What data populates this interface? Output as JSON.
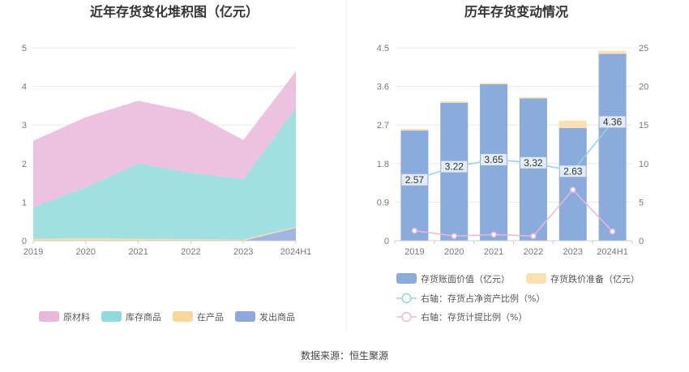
{
  "source": "数据来源：恒生聚源",
  "chart_data": [
    {
      "type": "area",
      "stacked": true,
      "title": "近年存货变化堆积图（亿元）",
      "categories": [
        "2019",
        "2020",
        "2021",
        "2022",
        "2023",
        "2024H1"
      ],
      "ylim": [
        0,
        5
      ],
      "yticks": [
        "0",
        "1",
        "2",
        "3",
        "4",
        "5"
      ],
      "grid": true,
      "legend_position": "bottom",
      "series": [
        {
          "name": "原材料",
          "color": "#e9b7d8",
          "values": [
            1.72,
            1.82,
            1.63,
            1.58,
            1.01,
            0.95
          ]
        },
        {
          "name": "库存商品",
          "color": "#8fdada",
          "values": [
            0.82,
            1.32,
            1.95,
            1.72,
            1.57,
            3.08
          ]
        },
        {
          "name": "在产品",
          "color": "#f8d79b",
          "values": [
            0.05,
            0.06,
            0.05,
            0.04,
            0.03,
            0.03
          ]
        },
        {
          "name": "发出商品",
          "color": "#8fa8dc",
          "values": [
            0.0,
            0.0,
            0.0,
            0.0,
            0.0,
            0.33
          ]
        }
      ]
    },
    {
      "type": "bar",
      "stacked": true,
      "title": "历年存货变动情况",
      "categories": [
        "2019",
        "2020",
        "2021",
        "2022",
        "2023",
        "2024H1"
      ],
      "ylim": [
        0,
        4.5
      ],
      "yticks": [
        "0",
        "0.9",
        "1.8",
        "2.7",
        "3.6",
        "4.5"
      ],
      "y2lim": [
        0,
        25
      ],
      "y2ticks": [
        "0",
        "5",
        "10",
        "15",
        "20",
        "25"
      ],
      "grid": true,
      "legend_position": "bottom",
      "series": [
        {
          "name": "存货账面价值（亿元）",
          "kind": "bar",
          "color": "#8aabdb",
          "values": [
            2.57,
            3.22,
            3.65,
            3.32,
            2.63,
            4.36
          ],
          "labels": [
            "2.57",
            "3.22",
            "3.65",
            "3.32",
            "2.63",
            "4.36"
          ]
        },
        {
          "name": "存货跌价准备（亿元）",
          "kind": "bar",
          "color": "#fbe0b2",
          "values": [
            0.04,
            0.03,
            0.03,
            0.03,
            0.17,
            0.07
          ]
        },
        {
          "name": "右轴：存货占净资产比例（%）",
          "kind": "line",
          "axis": "right",
          "color": "#8fd6de",
          "values": [
            7.9,
            9.6,
            10.5,
            10.1,
            9.0,
            15.4
          ]
        },
        {
          "name": "右轴：存货计提比例（%）",
          "kind": "line",
          "axis": "right",
          "color": "#e8b8da",
          "values": [
            1.3,
            0.6,
            0.8,
            0.6,
            6.6,
            1.2
          ]
        }
      ]
    }
  ]
}
